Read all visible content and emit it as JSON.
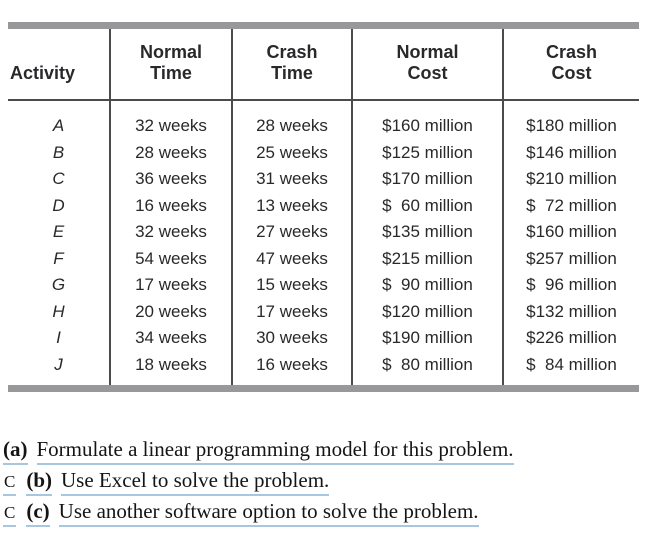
{
  "table": {
    "columns": [
      {
        "key": "activity",
        "lines": [
          "Activity"
        ]
      },
      {
        "key": "normal-time",
        "lines": [
          "Normal",
          "Time"
        ]
      },
      {
        "key": "crash-time",
        "lines": [
          "Crash",
          "Time"
        ]
      },
      {
        "key": "normal-cost",
        "lines": [
          "Normal",
          "Cost"
        ]
      },
      {
        "key": "crash-cost",
        "lines": [
          "Crash",
          "Cost"
        ]
      }
    ],
    "rows": [
      [
        "A",
        "32 weeks",
        "28 weeks",
        "$160 million",
        "$180 million"
      ],
      [
        "B",
        "28 weeks",
        "25 weeks",
        "$125 million",
        "$146 million"
      ],
      [
        "C",
        "36 weeks",
        "31 weeks",
        "$170 million",
        "$210 million"
      ],
      [
        "D",
        "16 weeks",
        "13 weeks",
        "$ 60 million",
        "$ 72 million"
      ],
      [
        "E",
        "32 weeks",
        "27 weeks",
        "$135 million",
        "$160 million"
      ],
      [
        "F",
        "54 weeks",
        "47 weeks",
        "$215 million",
        "$257 million"
      ],
      [
        "G",
        "17 weeks",
        "15 weeks",
        "$ 90 million",
        "$ 96 million"
      ],
      [
        "H",
        "20 weeks",
        "17 weeks",
        "$120 million",
        "$132 million"
      ],
      [
        "I",
        "34 weeks",
        "30 weeks",
        "$190 million",
        "$226 million"
      ],
      [
        "J",
        "18 weeks",
        "16 weeks",
        "$ 80 million",
        "$ 84 million"
      ]
    ]
  },
  "questions": [
    {
      "c": "",
      "label": "(a)",
      "text": "Formulate a linear programming model for this problem."
    },
    {
      "c": "C",
      "label": "(b)",
      "text": "Use Excel to solve the problem."
    },
    {
      "c": "C",
      "label": "(c)",
      "text": "Use another software option to solve the problem."
    }
  ],
  "colors": {
    "bar_gray": "#98989a",
    "rule_dark": "#4b4b4d",
    "underline_blue": "#a6c7e0",
    "table_text": "#29292c",
    "question_text": "#141414"
  }
}
